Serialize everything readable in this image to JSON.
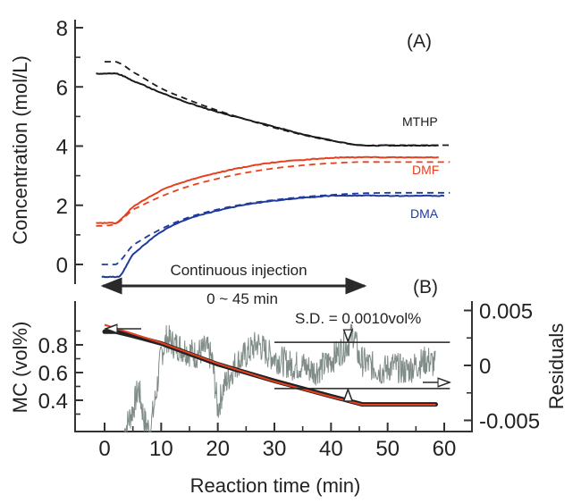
{
  "chart_data": [
    {
      "panel": "(A)",
      "type": "line",
      "ylabel": "Concentration (mol/L)",
      "xlabel": "Reaction time (min)",
      "xlim": [
        -5,
        62
      ],
      "ylim": [
        -0.7,
        8.4
      ],
      "yticks": [
        0,
        2,
        4,
        6,
        8
      ],
      "yminor_ticks": [
        1,
        3,
        5,
        7
      ],
      "series": [
        {
          "name": "MTHP",
          "style": "solid",
          "color": "#1a1a1a",
          "x": [
            -1.5,
            2,
            5,
            10,
            15,
            20,
            25,
            30,
            35,
            40,
            45,
            50,
            55,
            59
          ],
          "y": [
            6.45,
            6.45,
            6.2,
            5.8,
            5.45,
            5.15,
            4.9,
            4.65,
            4.4,
            4.2,
            4.03,
            4.02,
            4.02,
            4.02
          ]
        },
        {
          "name": "MTHP model",
          "style": "dashed",
          "color": "#1a1a1a",
          "x": [
            0,
            2,
            5,
            10,
            15,
            20,
            25,
            30,
            35,
            40,
            45,
            50,
            55,
            61
          ],
          "y": [
            6.85,
            6.85,
            6.5,
            5.95,
            5.55,
            5.2,
            4.9,
            4.62,
            4.38,
            4.18,
            4.03,
            4.03,
            4.03,
            4.03
          ]
        },
        {
          "name": "DMF",
          "style": "solid",
          "color": "#e8401e",
          "x": [
            -1.5,
            2,
            5,
            10,
            15,
            20,
            25,
            30,
            35,
            40,
            45,
            50,
            55,
            59
          ],
          "y": [
            1.4,
            1.4,
            1.95,
            2.5,
            2.85,
            3.1,
            3.3,
            3.45,
            3.53,
            3.6,
            3.62,
            3.62,
            3.62,
            3.62
          ]
        },
        {
          "name": "DMF model",
          "style": "dashed",
          "color": "#e8401e",
          "x": [
            -1.5,
            2,
            5,
            10,
            15,
            20,
            25,
            30,
            35,
            40,
            45,
            50,
            55,
            61
          ],
          "y": [
            1.3,
            1.38,
            1.85,
            2.3,
            2.65,
            2.9,
            3.1,
            3.25,
            3.35,
            3.42,
            3.46,
            3.46,
            3.46,
            3.46
          ]
        },
        {
          "name": "DMA",
          "style": "solid",
          "color": "#1f3b9e",
          "x": [
            -0.5,
            2.5,
            5,
            10,
            15,
            20,
            25,
            30,
            35,
            40,
            45,
            50,
            55,
            60
          ],
          "y": [
            -0.42,
            -0.42,
            0.35,
            1.1,
            1.55,
            1.82,
            2.02,
            2.15,
            2.25,
            2.32,
            2.33,
            2.32,
            2.32,
            2.32
          ]
        },
        {
          "name": "DMA model",
          "style": "dashed",
          "color": "#1f3b9e",
          "x": [
            -0.5,
            2,
            5,
            10,
            15,
            20,
            25,
            30,
            35,
            40,
            45,
            50,
            55,
            61
          ],
          "y": [
            0.0,
            0.0,
            0.65,
            1.2,
            1.6,
            1.86,
            2.05,
            2.18,
            2.28,
            2.35,
            2.4,
            2.42,
            2.42,
            2.42
          ]
        }
      ],
      "series_labels": [
        {
          "text": "MTHP",
          "x": 55,
          "y": 4.6,
          "color": "#1a1a1a"
        },
        {
          "text": "DMF",
          "x": 55,
          "y": 3.1,
          "color": "#e8401e"
        },
        {
          "text": "DMA",
          "x": 55,
          "y": 1.7,
          "color": "#1f3b9e"
        }
      ]
    },
    {
      "panel": "(B)",
      "type": "line",
      "ylabel": "MC (vol%)",
      "y2label": "Residuals",
      "xlabel": "Reaction time (min)",
      "xlim": [
        -5,
        62
      ],
      "xticks": [
        0,
        10,
        20,
        30,
        40,
        50,
        60
      ],
      "xminor_ticks": [
        5,
        15,
        25,
        35,
        45,
        55
      ],
      "ylim": [
        0.29,
        0.98
      ],
      "yticks": [
        0.4,
        0.6,
        0.8
      ],
      "yminor_ticks": [
        0.3,
        0.5,
        0.7,
        0.9
      ],
      "y2lim": [
        -0.0061,
        0.0061
      ],
      "y2ticks": [
        -0.005,
        0,
        0.005
      ],
      "y2ticklabels": [
        "-0.005",
        "0",
        "0.005"
      ],
      "y2minor_ticks": [
        -0.0025,
        0.0025
      ],
      "series": [
        {
          "name": "MC measured",
          "style": "thick",
          "color": "#222222",
          "axis": "left",
          "x": [
            0,
            2,
            5,
            10,
            20,
            30,
            40,
            45.5,
            50,
            55,
            58.5
          ],
          "y": [
            0.895,
            0.895,
            0.865,
            0.81,
            0.66,
            0.54,
            0.43,
            0.37,
            0.37,
            0.37,
            0.37
          ]
        },
        {
          "name": "MC fit",
          "style": "solid",
          "color": "#e8401e",
          "axis": "left",
          "x": [
            0,
            10,
            20,
            30,
            40,
            45.5,
            50,
            58.5
          ],
          "y": [
            0.945,
            0.815,
            0.665,
            0.535,
            0.425,
            0.368,
            0.368,
            0.368
          ]
        },
        {
          "name": "Residuals",
          "style": "noisy",
          "color": "#7f8c88",
          "axis": "right",
          "x": [
            3.5,
            5,
            6,
            7,
            8,
            9,
            10,
            11,
            12,
            14,
            16,
            18,
            19,
            20,
            21,
            23,
            25,
            27,
            29,
            31,
            33,
            35,
            37,
            39,
            41,
            43,
            44,
            45,
            47,
            49,
            51,
            53,
            55,
            57,
            58.5
          ],
          "y": [
            -0.006,
            -0.004,
            -0.002,
            -0.005,
            -0.006,
            -0.003,
            0.001,
            0.0025,
            0.002,
            0.0015,
            0.001,
            0.0015,
            0.0005,
            -0.004,
            -0.002,
            0.0,
            0.001,
            0.002,
            0.001,
            0.0005,
            0.0,
            0.0,
            -0.0005,
            0.0,
            0.001,
            0.002,
            0.003,
            0.0005,
            0.0,
            -0.0005,
            0.0,
            -0.0005,
            0.0,
            0.0005,
            0.0
          ]
        }
      ],
      "sd_band": {
        "upper": 0.0021,
        "lower": -0.0021,
        "x_start": 30,
        "x_end": 61,
        "arrow_x": 43
      },
      "annotations": {
        "sd_text": "S.D. = 0.0010vol%",
        "injection_text": "Continuous injection",
        "injection_range_text": "0 ~ 45 min",
        "injection_range": [
          0,
          45
        ]
      }
    }
  ]
}
